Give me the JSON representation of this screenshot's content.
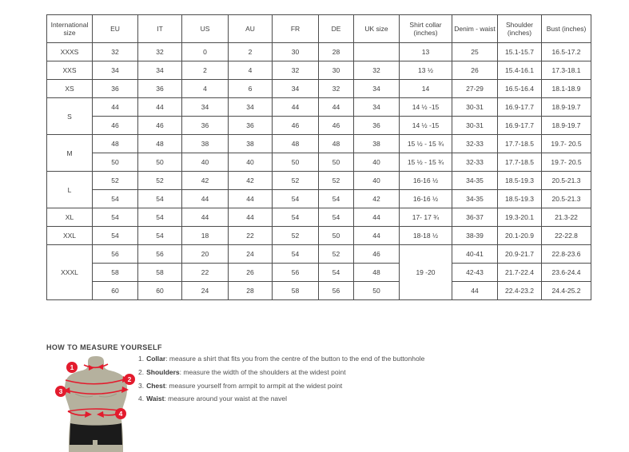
{
  "size_chart": {
    "columns": [
      "International size",
      "EU",
      "IT",
      "US",
      "AU",
      "FR",
      "DE",
      "UK size",
      "Shirt collar (inches)",
      "Denim - waist",
      "Shoulder (inches)",
      "Bust (inches)"
    ],
    "rows": [
      [
        {
          "t": "XXXS"
        },
        {
          "t": "32"
        },
        {
          "t": "32"
        },
        {
          "t": "0"
        },
        {
          "t": "2"
        },
        {
          "t": "30"
        },
        {
          "t": "28"
        },
        {
          "t": ""
        },
        {
          "t": "13"
        },
        {
          "t": "25"
        },
        {
          "t": "15.1-15.7"
        },
        {
          "t": "16.5-17.2"
        }
      ],
      [
        {
          "t": "XXS"
        },
        {
          "t": "34"
        },
        {
          "t": "34"
        },
        {
          "t": "2"
        },
        {
          "t": "4"
        },
        {
          "t": "32"
        },
        {
          "t": "30"
        },
        {
          "t": "32"
        },
        {
          "t": "13 ½"
        },
        {
          "t": "26"
        },
        {
          "t": "15.4-16.1"
        },
        {
          "t": "17.3-18.1"
        }
      ],
      [
        {
          "t": "XS"
        },
        {
          "t": "36"
        },
        {
          "t": "36"
        },
        {
          "t": "4"
        },
        {
          "t": "6"
        },
        {
          "t": "34"
        },
        {
          "t": "32"
        },
        {
          "t": "34"
        },
        {
          "t": "14"
        },
        {
          "t": "27-29"
        },
        {
          "t": "16.5-16.4"
        },
        {
          "t": "18.1-18.9"
        }
      ],
      [
        {
          "t": "S",
          "rs": 2
        },
        {
          "t": "44"
        },
        {
          "t": "44"
        },
        {
          "t": "34"
        },
        {
          "t": "34"
        },
        {
          "t": "44"
        },
        {
          "t": "44"
        },
        {
          "t": "34"
        },
        {
          "t": "14 ½ -15"
        },
        {
          "t": "30-31"
        },
        {
          "t": "16.9-17.7"
        },
        {
          "t": "18.9-19.7"
        }
      ],
      [
        {
          "t": "46"
        },
        {
          "t": "46"
        },
        {
          "t": "36"
        },
        {
          "t": "36"
        },
        {
          "t": "46"
        },
        {
          "t": "46"
        },
        {
          "t": "36"
        },
        {
          "t": "14 ½ -15"
        },
        {
          "t": "30-31"
        },
        {
          "t": "16.9-17.7"
        },
        {
          "t": "18.9-19.7"
        }
      ],
      [
        {
          "t": "M",
          "rs": 2
        },
        {
          "t": "48"
        },
        {
          "t": "48"
        },
        {
          "t": "38"
        },
        {
          "t": "38"
        },
        {
          "t": "48"
        },
        {
          "t": "48"
        },
        {
          "t": "38"
        },
        {
          "t": "15 ½ - 15 ¾"
        },
        {
          "t": "32-33"
        },
        {
          "t": "17.7-18.5"
        },
        {
          "t": "19.7- 20.5"
        }
      ],
      [
        {
          "t": "50"
        },
        {
          "t": "50"
        },
        {
          "t": "40"
        },
        {
          "t": "40"
        },
        {
          "t": "50"
        },
        {
          "t": "50"
        },
        {
          "t": "40"
        },
        {
          "t": "15 ½ - 15 ¾"
        },
        {
          "t": "32-33"
        },
        {
          "t": "17.7-18.5"
        },
        {
          "t": "19.7- 20.5"
        }
      ],
      [
        {
          "t": "L",
          "rs": 2
        },
        {
          "t": "52"
        },
        {
          "t": "52"
        },
        {
          "t": "42"
        },
        {
          "t": "42"
        },
        {
          "t": "52"
        },
        {
          "t": "52"
        },
        {
          "t": "40"
        },
        {
          "t": "16-16 ½"
        },
        {
          "t": "34-35"
        },
        {
          "t": "18.5-19.3"
        },
        {
          "t": "20.5-21.3"
        }
      ],
      [
        {
          "t": "54"
        },
        {
          "t": "54"
        },
        {
          "t": "44"
        },
        {
          "t": "44"
        },
        {
          "t": "54"
        },
        {
          "t": "54"
        },
        {
          "t": "42"
        },
        {
          "t": "16-16 ½"
        },
        {
          "t": "34-35"
        },
        {
          "t": "18.5-19.3"
        },
        {
          "t": "20.5-21.3"
        }
      ],
      [
        {
          "t": "XL"
        },
        {
          "t": "54"
        },
        {
          "t": "54"
        },
        {
          "t": "44"
        },
        {
          "t": "44"
        },
        {
          "t": "54"
        },
        {
          "t": "54"
        },
        {
          "t": "44"
        },
        {
          "t": "17- 17 ¾"
        },
        {
          "t": "36-37"
        },
        {
          "t": "19.3-20.1"
        },
        {
          "t": "21.3-22"
        }
      ],
      [
        {
          "t": "XXL"
        },
        {
          "t": "54"
        },
        {
          "t": "54"
        },
        {
          "t": "18"
        },
        {
          "t": "22"
        },
        {
          "t": "52"
        },
        {
          "t": "50"
        },
        {
          "t": "44"
        },
        {
          "t": "18-18 ½"
        },
        {
          "t": "38-39"
        },
        {
          "t": "20.1-20.9"
        },
        {
          "t": "22-22.8"
        }
      ],
      [
        {
          "t": "XXXL",
          "rs": 3
        },
        {
          "t": "56"
        },
        {
          "t": "56"
        },
        {
          "t": "20"
        },
        {
          "t": "24"
        },
        {
          "t": "54"
        },
        {
          "t": "52"
        },
        {
          "t": "46"
        },
        {
          "t": "19 -20",
          "rs": 3
        },
        {
          "t": "40-41"
        },
        {
          "t": "20.9-21.7"
        },
        {
          "t": "22.8-23.6"
        }
      ],
      [
        {
          "t": "58"
        },
        {
          "t": "58"
        },
        {
          "t": "22"
        },
        {
          "t": "26"
        },
        {
          "t": "56"
        },
        {
          "t": "54"
        },
        {
          "t": "48"
        },
        {
          "t": "42-43"
        },
        {
          "t": "21.7-22.4"
        },
        {
          "t": "23.6-24.4"
        }
      ],
      [
        {
          "t": "60"
        },
        {
          "t": "60"
        },
        {
          "t": "24"
        },
        {
          "t": "28"
        },
        {
          "t": "58"
        },
        {
          "t": "56"
        },
        {
          "t": "50"
        },
        {
          "t": "44"
        },
        {
          "t": "22.4-23.2"
        },
        {
          "t": "24.4-25.2"
        }
      ]
    ]
  },
  "measure": {
    "title": "HOW TO MEASURE YOURSELF",
    "steps": [
      {
        "num": "1.",
        "term": "Collar",
        "text": ": measure a shirt that fits you from the centre of the button to the end of the buttonhole"
      },
      {
        "num": "2.",
        "term": "Shoulders",
        "text": ": measure the width of the shoulders at the widest point"
      },
      {
        "num": "3.",
        "term": "Chest",
        "text": ": measure yourself from armpit to armpit at the widest point"
      },
      {
        "num": "4.",
        "term": "Waist",
        "text": ": measure around your waist at the navel"
      }
    ],
    "diagram_labels": [
      "1",
      "2",
      "3",
      "4"
    ],
    "colors": {
      "accent_red": "#e31b2d",
      "torso": "#b5b19e",
      "torso_shadow": "#a19d89",
      "shorts": "#1b1b1b"
    }
  }
}
